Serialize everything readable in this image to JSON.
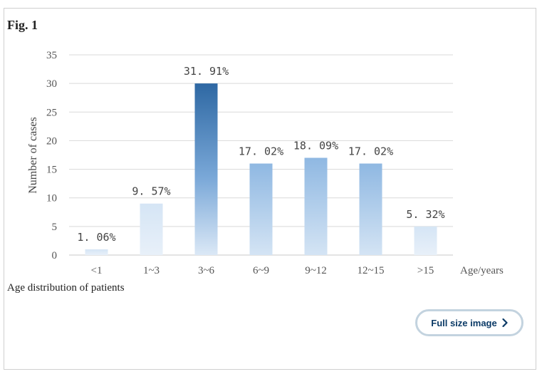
{
  "figure": {
    "label": "Fig. 1",
    "caption": "Age distribution of patients",
    "full_size_button": "Full size image"
  },
  "icons": {
    "chevron": "chevron-right-icon"
  },
  "colors": {
    "bar_dark": "#2e68a3",
    "bar_mid": "#91bbe4",
    "bar_light": "#dbe8f6",
    "grid": "#d9d9d9",
    "button_text": "#0b3a66"
  },
  "chart_data": {
    "type": "bar",
    "categories": [
      "<1",
      "1~3",
      "3~6",
      "6~9",
      "9~12",
      "12~15",
      ">15"
    ],
    "values": [
      1,
      9,
      30,
      16,
      17,
      16,
      5
    ],
    "data_labels": [
      "1. 06%",
      "9. 57%",
      "31. 91%",
      "17. 02%",
      "18. 09%",
      "17. 02%",
      "5. 32%"
    ],
    "xlabel": "Age/years",
    "ylabel": "Number of cases",
    "ylim": [
      0,
      35
    ],
    "yticks": [
      0,
      5,
      10,
      15,
      20,
      25,
      30,
      35
    ],
    "grid": true,
    "legend": "none"
  }
}
